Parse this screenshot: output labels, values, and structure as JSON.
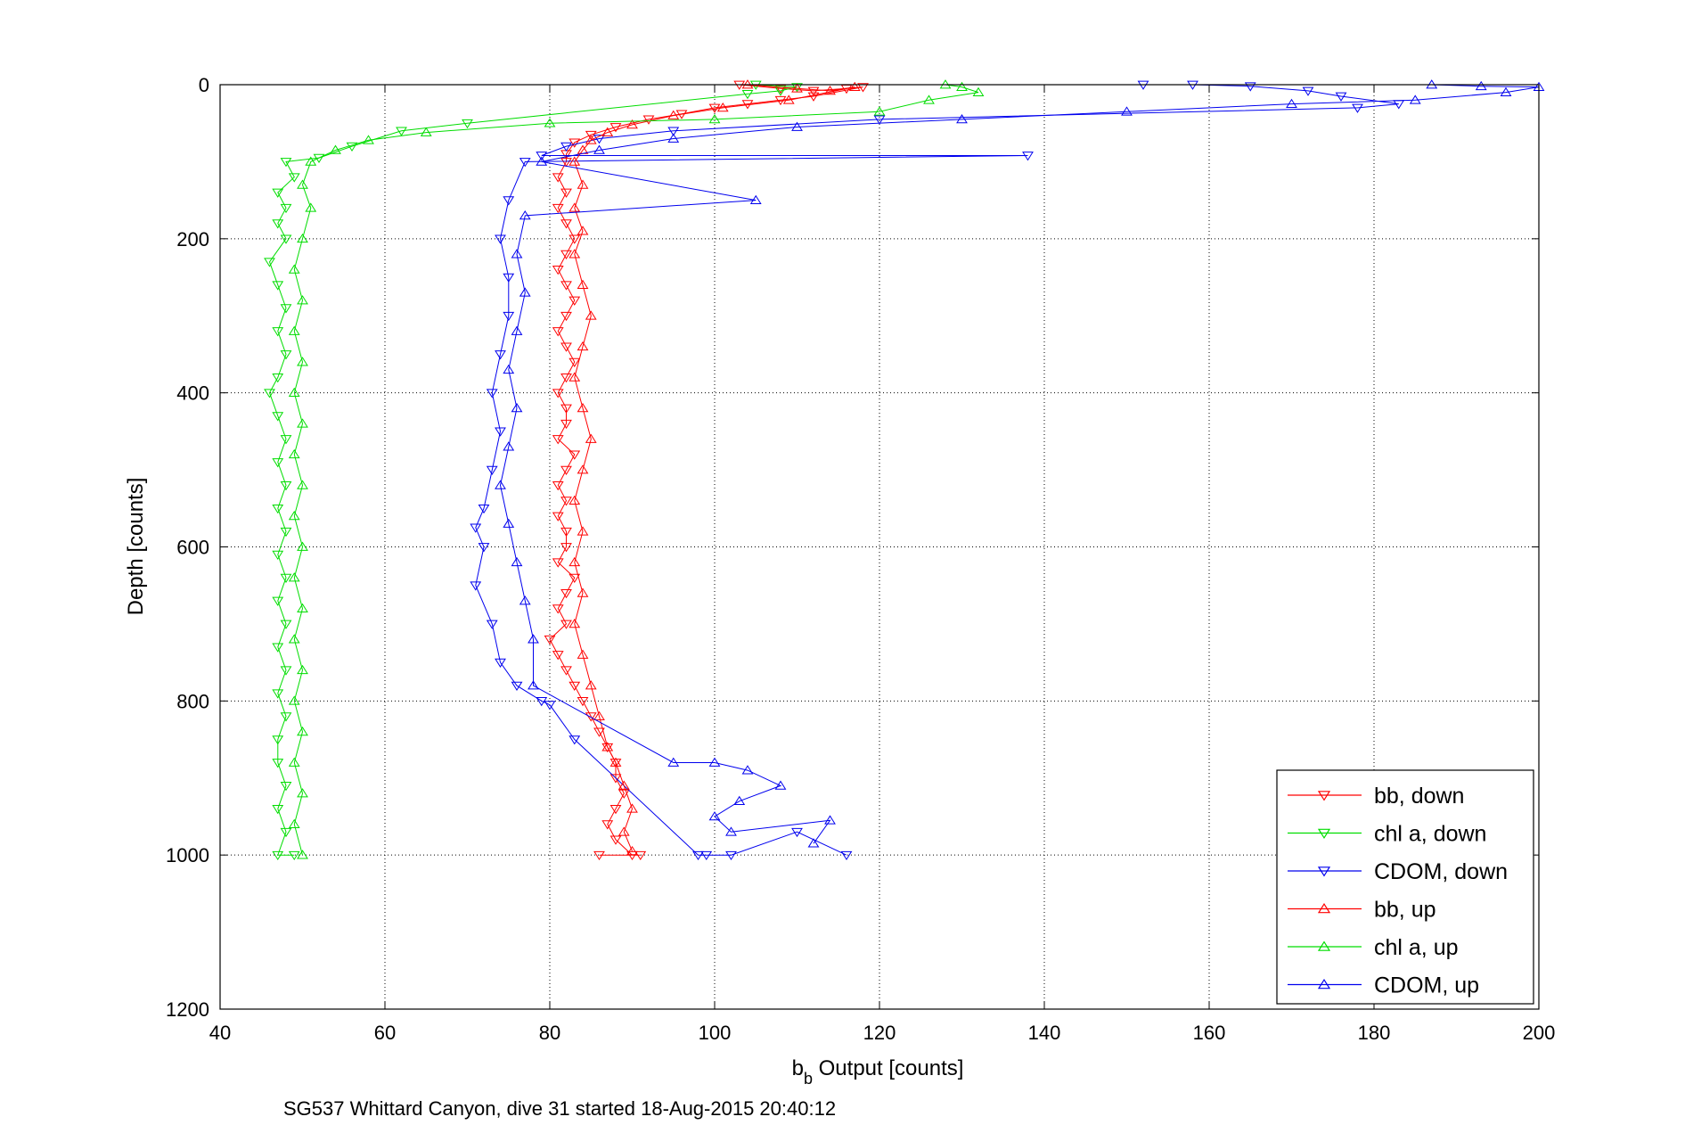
{
  "chart_data": {
    "type": "scatter",
    "title": "",
    "xlabel": "b_b Output [counts]",
    "xlabel_main": "b",
    "xlabel_sub": "b",
    "xlabel_rest": " Output [counts]",
    "ylabel": "Depth [counts]",
    "caption": "SG537 Whittard Canyon, dive 31 started 18-Aug-2015 20:40:12",
    "xlim": [
      40,
      200
    ],
    "ylim": [
      0,
      1200
    ],
    "y_reversed": true,
    "grid": true,
    "legend_position": "bottom-right",
    "x_ticks": [
      "40",
      "60",
      "80",
      "100",
      "120",
      "140",
      "160",
      "180",
      "200"
    ],
    "y_ticks": [
      "0",
      "200",
      "400",
      "600",
      "800",
      "1000",
      "1200"
    ],
    "series": [
      {
        "name": "bb, down",
        "color": "#ff0000",
        "marker": "triangle-down",
        "points": [
          [
            103,
            0
          ],
          [
            108,
            5
          ],
          [
            112,
            8
          ],
          [
            116,
            5
          ],
          [
            118,
            3
          ],
          [
            112,
            15
          ],
          [
            108,
            20
          ],
          [
            104,
            25
          ],
          [
            100,
            30
          ],
          [
            96,
            38
          ],
          [
            92,
            45
          ],
          [
            88,
            55
          ],
          [
            85,
            65
          ],
          [
            83,
            75
          ],
          [
            82,
            90
          ],
          [
            82,
            100
          ],
          [
            81,
            120
          ],
          [
            82,
            140
          ],
          [
            81,
            160
          ],
          [
            82,
            180
          ],
          [
            83,
            200
          ],
          [
            82,
            220
          ],
          [
            81,
            240
          ],
          [
            82,
            260
          ],
          [
            83,
            280
          ],
          [
            82,
            300
          ],
          [
            81,
            320
          ],
          [
            82,
            340
          ],
          [
            83,
            360
          ],
          [
            82,
            380
          ],
          [
            81,
            400
          ],
          [
            82,
            420
          ],
          [
            82,
            440
          ],
          [
            81,
            460
          ],
          [
            83,
            480
          ],
          [
            82,
            500
          ],
          [
            81,
            520
          ],
          [
            82,
            540
          ],
          [
            81,
            560
          ],
          [
            82,
            580
          ],
          [
            82,
            600
          ],
          [
            81,
            620
          ],
          [
            83,
            640
          ],
          [
            82,
            660
          ],
          [
            81,
            680
          ],
          [
            82,
            700
          ],
          [
            80,
            720
          ],
          [
            81,
            740
          ],
          [
            82,
            760
          ],
          [
            83,
            780
          ],
          [
            84,
            800
          ],
          [
            85,
            820
          ],
          [
            86,
            840
          ],
          [
            87,
            860
          ],
          [
            88,
            880
          ],
          [
            88,
            900
          ],
          [
            89,
            920
          ],
          [
            88,
            940
          ],
          [
            87,
            960
          ],
          [
            88,
            980
          ],
          [
            90,
            1000
          ],
          [
            86,
            1000
          ],
          [
            91,
            1000
          ]
        ]
      },
      {
        "name": "chl a, down",
        "color": "#00dd00",
        "marker": "triangle-down",
        "points": [
          [
            105,
            0
          ],
          [
            110,
            3
          ],
          [
            108,
            8
          ],
          [
            104,
            12
          ],
          [
            70,
            50
          ],
          [
            62,
            60
          ],
          [
            56,
            80
          ],
          [
            52,
            95
          ],
          [
            48,
            100
          ],
          [
            49,
            120
          ],
          [
            47,
            140
          ],
          [
            48,
            160
          ],
          [
            47,
            180
          ],
          [
            48,
            200
          ],
          [
            46,
            230
          ],
          [
            47,
            260
          ],
          [
            48,
            290
          ],
          [
            47,
            320
          ],
          [
            48,
            350
          ],
          [
            47,
            380
          ],
          [
            46,
            400
          ],
          [
            47,
            430
          ],
          [
            48,
            460
          ],
          [
            47,
            490
          ],
          [
            48,
            520
          ],
          [
            47,
            550
          ],
          [
            48,
            580
          ],
          [
            47,
            610
          ],
          [
            48,
            640
          ],
          [
            47,
            670
          ],
          [
            48,
            700
          ],
          [
            47,
            730
          ],
          [
            48,
            760
          ],
          [
            47,
            790
          ],
          [
            48,
            820
          ],
          [
            47,
            850
          ],
          [
            47,
            880
          ],
          [
            48,
            910
          ],
          [
            47,
            940
          ],
          [
            48,
            970
          ],
          [
            47,
            1000
          ],
          [
            49,
            1000
          ]
        ]
      },
      {
        "name": "CDOM, down",
        "color": "#0000ee",
        "marker": "triangle-down",
        "points": [
          [
            152,
            0
          ],
          [
            158,
            0
          ],
          [
            165,
            2
          ],
          [
            172,
            8
          ],
          [
            176,
            15
          ],
          [
            183,
            25
          ],
          [
            178,
            30
          ],
          [
            120,
            45
          ],
          [
            95,
            60
          ],
          [
            86,
            70
          ],
          [
            82,
            80
          ],
          [
            79,
            92
          ],
          [
            138,
            92
          ],
          [
            77,
            100
          ],
          [
            75,
            150
          ],
          [
            74,
            200
          ],
          [
            75,
            250
          ],
          [
            75,
            300
          ],
          [
            74,
            350
          ],
          [
            73,
            400
          ],
          [
            74,
            450
          ],
          [
            73,
            500
          ],
          [
            72,
            550
          ],
          [
            71,
            575
          ],
          [
            72,
            600
          ],
          [
            71,
            650
          ],
          [
            73,
            700
          ],
          [
            74,
            750
          ],
          [
            76,
            780
          ],
          [
            79,
            800
          ],
          [
            80,
            805
          ],
          [
            83,
            850
          ],
          [
            98,
            1000
          ],
          [
            99,
            1000
          ],
          [
            102,
            1000
          ],
          [
            110,
            970
          ],
          [
            116,
            1000
          ]
        ]
      },
      {
        "name": "bb, up",
        "color": "#ff0000",
        "marker": "triangle-up",
        "points": [
          [
            104,
            0
          ],
          [
            110,
            5
          ],
          [
            114,
            8
          ],
          [
            117,
            3
          ],
          [
            109,
            20
          ],
          [
            101,
            30
          ],
          [
            95,
            40
          ],
          [
            90,
            52
          ],
          [
            87,
            62
          ],
          [
            85,
            72
          ],
          [
            84,
            85
          ],
          [
            83,
            100
          ],
          [
            84,
            130
          ],
          [
            83,
            160
          ],
          [
            84,
            190
          ],
          [
            83,
            220
          ],
          [
            84,
            260
          ],
          [
            85,
            300
          ],
          [
            84,
            340
          ],
          [
            83,
            380
          ],
          [
            84,
            420
          ],
          [
            85,
            460
          ],
          [
            84,
            500
          ],
          [
            83,
            540
          ],
          [
            84,
            580
          ],
          [
            83,
            620
          ],
          [
            84,
            660
          ],
          [
            83,
            700
          ],
          [
            84,
            740
          ],
          [
            85,
            780
          ],
          [
            86,
            820
          ],
          [
            87,
            860
          ],
          [
            88,
            880
          ],
          [
            89,
            910
          ],
          [
            90,
            940
          ],
          [
            89,
            970
          ],
          [
            90,
            995
          ]
        ]
      },
      {
        "name": "chl a, up",
        "color": "#00dd00",
        "marker": "triangle-up",
        "points": [
          [
            128,
            0
          ],
          [
            130,
            3
          ],
          [
            132,
            10
          ],
          [
            126,
            20
          ],
          [
            120,
            35
          ],
          [
            100,
            45
          ],
          [
            80,
            50
          ],
          [
            65,
            62
          ],
          [
            58,
            72
          ],
          [
            54,
            85
          ],
          [
            51,
            100
          ],
          [
            50,
            130
          ],
          [
            51,
            160
          ],
          [
            50,
            200
          ],
          [
            49,
            240
          ],
          [
            50,
            280
          ],
          [
            49,
            320
          ],
          [
            50,
            360
          ],
          [
            49,
            400
          ],
          [
            50,
            440
          ],
          [
            49,
            480
          ],
          [
            50,
            520
          ],
          [
            49,
            560
          ],
          [
            50,
            600
          ],
          [
            49,
            640
          ],
          [
            50,
            680
          ],
          [
            49,
            720
          ],
          [
            50,
            760
          ],
          [
            49,
            800
          ],
          [
            50,
            840
          ],
          [
            49,
            880
          ],
          [
            50,
            920
          ],
          [
            49,
            960
          ],
          [
            50,
            1000
          ]
        ]
      },
      {
        "name": "CDOM, up",
        "color": "#0000ee",
        "marker": "triangle-up",
        "points": [
          [
            187,
            0
          ],
          [
            193,
            2
          ],
          [
            200,
            3
          ],
          [
            196,
            10
          ],
          [
            185,
            20
          ],
          [
            170,
            25
          ],
          [
            150,
            35
          ],
          [
            130,
            45
          ],
          [
            110,
            55
          ],
          [
            95,
            70
          ],
          [
            86,
            85
          ],
          [
            79,
            100
          ],
          [
            105,
            150
          ],
          [
            77,
            170
          ],
          [
            76,
            220
          ],
          [
            77,
            270
          ],
          [
            76,
            320
          ],
          [
            75,
            370
          ],
          [
            76,
            420
          ],
          [
            75,
            470
          ],
          [
            74,
            520
          ],
          [
            75,
            570
          ],
          [
            76,
            620
          ],
          [
            77,
            670
          ],
          [
            78,
            720
          ],
          [
            78,
            780
          ],
          [
            95,
            880
          ],
          [
            100,
            880
          ],
          [
            104,
            890
          ],
          [
            108,
            910
          ],
          [
            103,
            930
          ],
          [
            100,
            950
          ],
          [
            102,
            970
          ],
          [
            114,
            955
          ],
          [
            112,
            985
          ]
        ]
      }
    ]
  }
}
